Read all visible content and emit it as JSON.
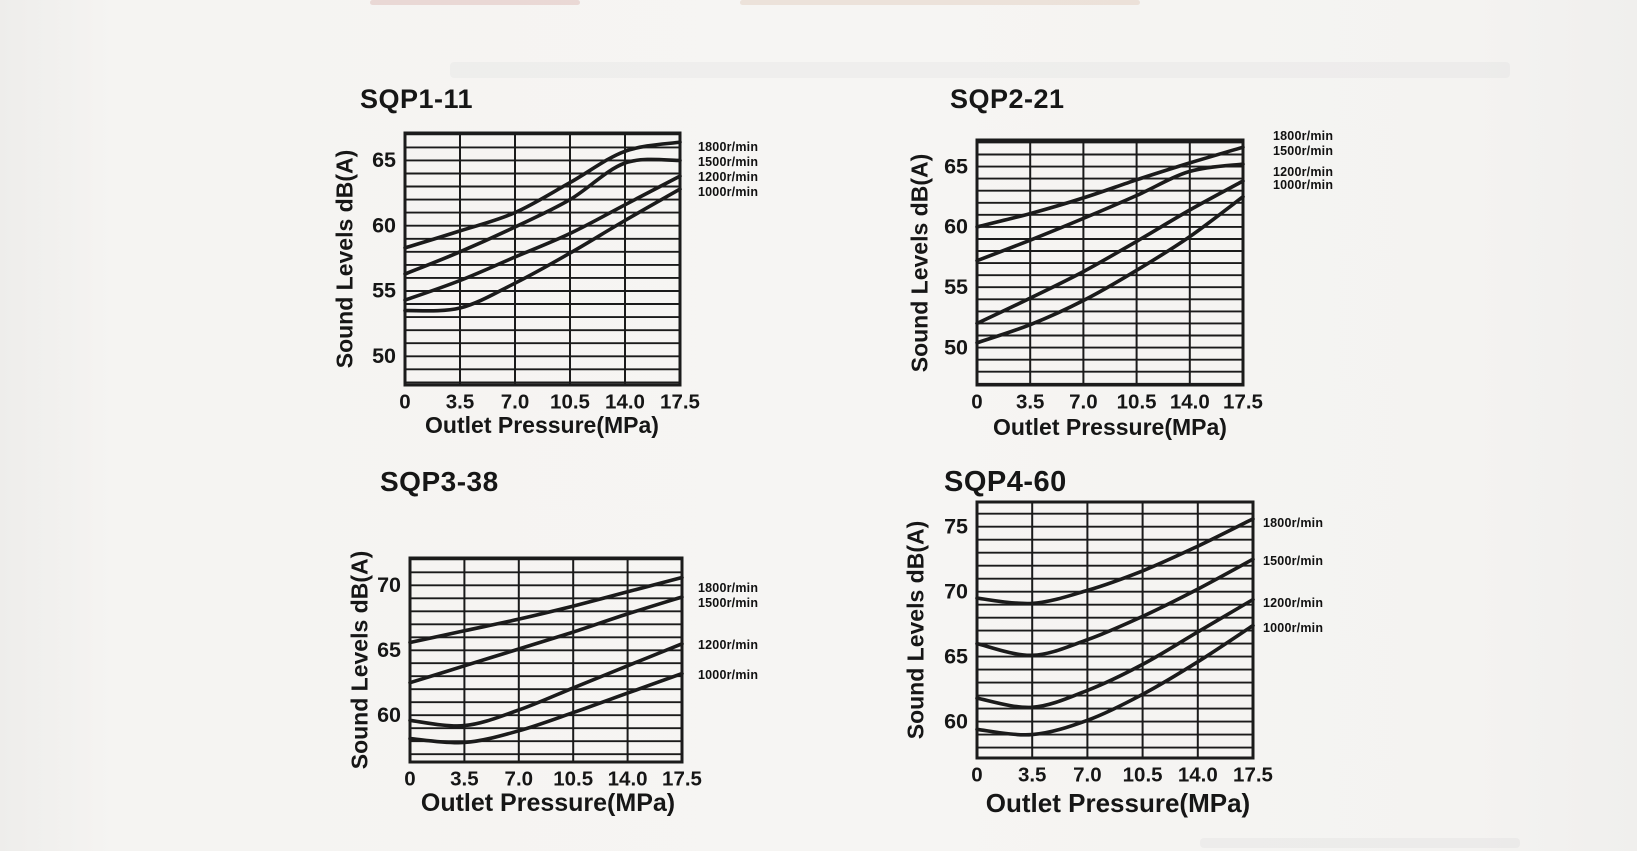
{
  "page": {
    "background": "#f4f3f1",
    "ink": "#1b1b1b",
    "description": "Scanned pump noise-level charts"
  },
  "chart_data": [
    {
      "id": "sqp1-11",
      "type": "line",
      "title": "SQP1-11",
      "xlabel": "Outlet Pressure(MPa)",
      "ylabel": "Sound Levels dB(A)",
      "x": [
        0,
        3.5,
        7.0,
        10.5,
        14.0,
        17.5
      ],
      "xtick_labels": [
        "0",
        "3.5",
        "7.0",
        "10.5",
        "14.0",
        "17.5"
      ],
      "yticks": [
        50,
        55,
        60,
        65
      ],
      "ylim": [
        47.8,
        67.1
      ],
      "grid": true,
      "legend_position": "right",
      "series": [
        {
          "name": "1800r/min",
          "values": [
            58.3,
            59.6,
            61.0,
            63.3,
            65.7,
            66.4
          ]
        },
        {
          "name": "1500r/min",
          "values": [
            56.3,
            58.0,
            59.9,
            62.0,
            64.8,
            65.0
          ]
        },
        {
          "name": "1200r/min",
          "values": [
            54.3,
            55.8,
            57.6,
            59.4,
            61.6,
            63.8
          ]
        },
        {
          "name": "1000r/min",
          "values": [
            53.5,
            53.7,
            55.6,
            57.9,
            60.4,
            62.8
          ]
        }
      ]
    },
    {
      "id": "sqp2-21",
      "type": "line",
      "title": "SQP2-21",
      "xlabel": "Outlet Pressure(MPa)",
      "ylabel": "Sound Levels dB(A)",
      "x": [
        0,
        3.5,
        7.0,
        10.5,
        14.0,
        17.5
      ],
      "xtick_labels": [
        "0",
        "3.5",
        "7.0",
        "10.5",
        "14.0",
        "17.5"
      ],
      "yticks": [
        50,
        55,
        60,
        65
      ],
      "ylim": [
        46.9,
        67.2
      ],
      "grid": true,
      "legend_position": "right",
      "series": [
        {
          "name": "1800r/min",
          "values": [
            60.0,
            61.1,
            62.4,
            63.9,
            65.3,
            66.6
          ]
        },
        {
          "name": "1500r/min",
          "values": [
            57.2,
            58.9,
            60.7,
            62.6,
            64.6,
            65.2
          ]
        },
        {
          "name": "1200r/min",
          "values": [
            52.0,
            54.1,
            56.3,
            58.8,
            61.4,
            63.8
          ]
        },
        {
          "name": "1000r/min",
          "values": [
            50.4,
            51.9,
            53.9,
            56.4,
            59.2,
            62.5
          ]
        }
      ]
    },
    {
      "id": "sqp3-38",
      "type": "line",
      "title": "SQP3-38",
      "xlabel": "Outlet Pressure(MPa)",
      "ylabel": "Sound Levels dB(A)",
      "x": [
        0,
        3.5,
        7.0,
        10.5,
        14.0,
        17.5
      ],
      "xtick_labels": [
        "0",
        "3.5",
        "7.0",
        "10.5",
        "14.0",
        "17.5"
      ],
      "yticks": [
        60,
        65,
        70
      ],
      "ylim": [
        56.4,
        72.1
      ],
      "grid": true,
      "legend_position": "right",
      "series": [
        {
          "name": "1800r/min",
          "values": [
            65.6,
            66.5,
            67.4,
            68.4,
            69.5,
            70.6
          ]
        },
        {
          "name": "1500r/min",
          "values": [
            62.5,
            63.8,
            65.1,
            66.4,
            67.8,
            69.1
          ]
        },
        {
          "name": "1200r/min",
          "values": [
            59.6,
            59.2,
            60.4,
            62.1,
            63.8,
            65.5
          ]
        },
        {
          "name": "1000r/min",
          "values": [
            58.2,
            57.9,
            58.8,
            60.2,
            61.7,
            63.2
          ]
        }
      ]
    },
    {
      "id": "sqp4-60",
      "type": "line",
      "title": "SQP4-60",
      "xlabel": "Outlet Pressure(MPa)",
      "ylabel": "Sound Levels dB(A)",
      "x": [
        0,
        3.5,
        7.0,
        10.5,
        14.0,
        17.5
      ],
      "xtick_labels": [
        "0",
        "3.5",
        "7.0",
        "10.5",
        "14.0",
        "17.5"
      ],
      "yticks": [
        60,
        65,
        70,
        75
      ],
      "ylim": [
        57.2,
        76.9
      ],
      "grid": true,
      "legend_position": "right",
      "series": [
        {
          "name": "1800r/min",
          "values": [
            69.5,
            69.1,
            70.1,
            71.6,
            73.5,
            75.6
          ]
        },
        {
          "name": "1500r/min",
          "values": [
            66.0,
            65.1,
            66.3,
            68.1,
            70.2,
            72.5
          ]
        },
        {
          "name": "1200r/min",
          "values": [
            61.8,
            61.1,
            62.4,
            64.4,
            66.9,
            69.4
          ]
        },
        {
          "name": "1000r/min",
          "values": [
            59.4,
            59.0,
            60.1,
            62.1,
            64.6,
            67.4
          ]
        }
      ]
    }
  ]
}
